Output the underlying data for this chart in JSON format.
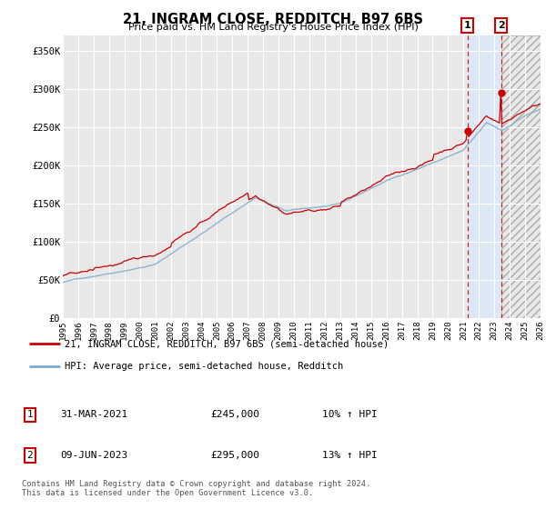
{
  "title": "21, INGRAM CLOSE, REDDITCH, B97 6BS",
  "subtitle": "Price paid vs. HM Land Registry's House Price Index (HPI)",
  "ylabel_ticks": [
    "£0",
    "£50K",
    "£100K",
    "£150K",
    "£200K",
    "£250K",
    "£300K",
    "£350K"
  ],
  "ytick_values": [
    0,
    50000,
    100000,
    150000,
    200000,
    250000,
    300000,
    350000
  ],
  "ylim": [
    0,
    370000
  ],
  "xlim_start": 1995,
  "xlim_end": 2026,
  "xtick_years": [
    1995,
    1996,
    1997,
    1998,
    1999,
    2000,
    2001,
    2002,
    2003,
    2004,
    2005,
    2006,
    2007,
    2008,
    2009,
    2010,
    2011,
    2012,
    2013,
    2014,
    2015,
    2016,
    2017,
    2018,
    2019,
    2020,
    2021,
    2022,
    2023,
    2024,
    2025,
    2026
  ],
  "hpi_color": "#7faacc",
  "price_color": "#cc0000",
  "legend_label1": "21, INGRAM CLOSE, REDDITCH, B97 6BS (semi-detached house)",
  "legend_label2": "HPI: Average price, semi-detached house, Redditch",
  "point1_date": "31-MAR-2021",
  "point1_price": "£245,000",
  "point1_hpi": "10% ↑ HPI",
  "point1_year": 2021.25,
  "point1_value": 245000,
  "point2_date": "09-JUN-2023",
  "point2_price": "£295,000",
  "point2_hpi": "13% ↑ HPI",
  "point2_year": 2023.44,
  "point2_value": 295000,
  "footer": "Contains HM Land Registry data © Crown copyright and database right 2024.\nThis data is licensed under the Open Government Licence v3.0.",
  "bg_color": "#ffffff",
  "plot_bg_color": "#e8e8e8",
  "grid_color": "#ffffff",
  "blue_shade_start": 2021.25,
  "blue_shade_end": 2023.44,
  "gray_hatch_start": 2023.44,
  "gray_hatch_end": 2026
}
